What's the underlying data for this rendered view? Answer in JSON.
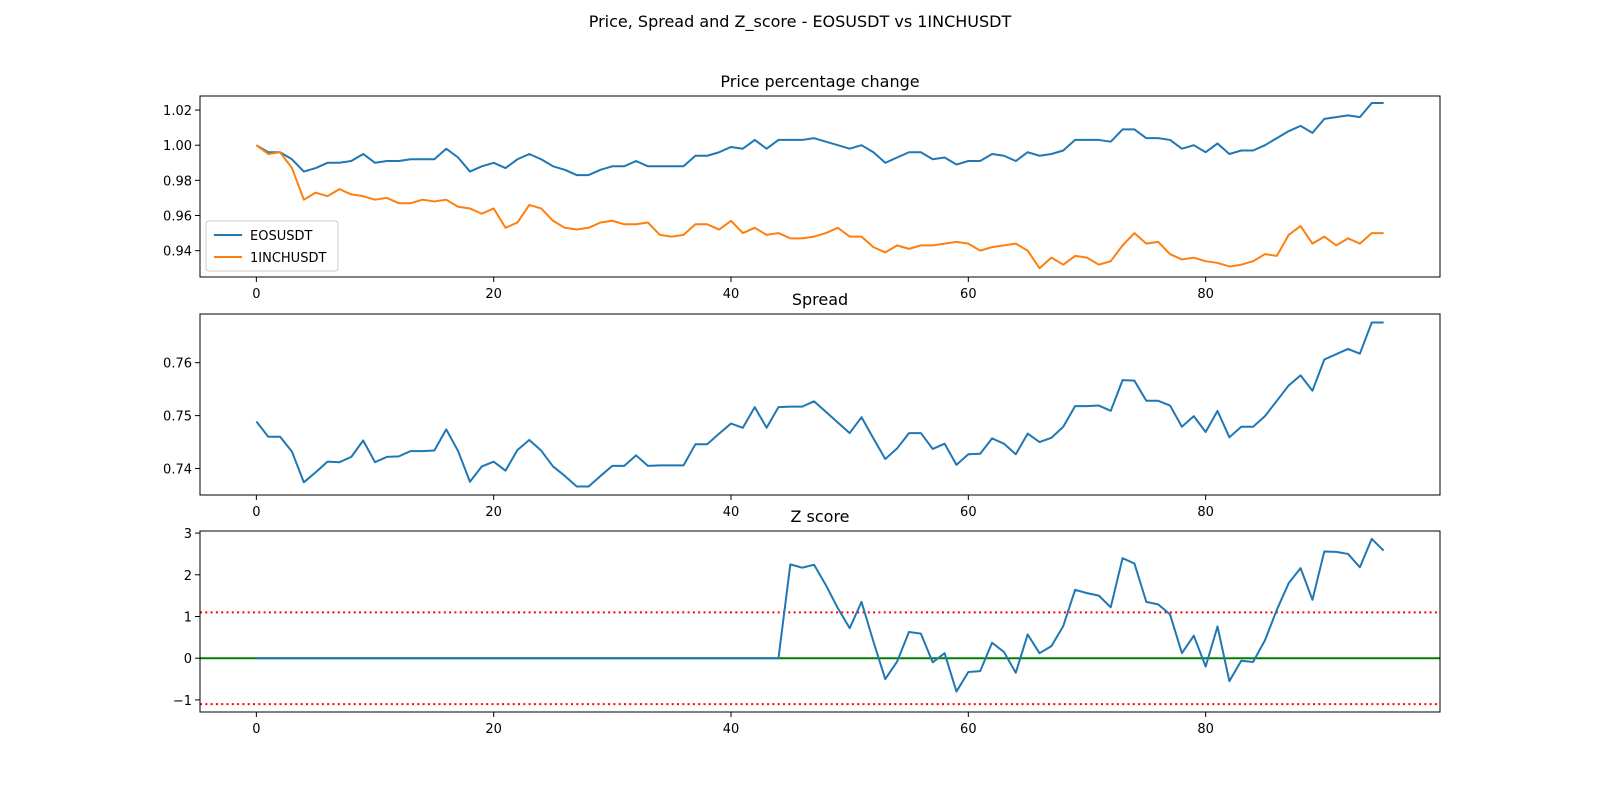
{
  "figure_title": "Price, Spread and Z_score - EOSUSDT vs 1INCHUSDT",
  "colors": {
    "blue": "#1f77b4",
    "orange": "#ff7f0e",
    "green": "#008000",
    "red": "#ff0000"
  },
  "chart_data": [
    {
      "type": "line",
      "title": "Price percentage change",
      "xlabel": "",
      "ylabel": "",
      "xlim": [
        -4.75,
        99.75
      ],
      "ylim": [
        0.925,
        1.028
      ],
      "xticks": [
        0,
        20,
        40,
        60,
        80
      ],
      "yticks": [
        0.94,
        0.96,
        0.98,
        1.0,
        1.02
      ],
      "ytick_labels": [
        "0.94",
        "0.96",
        "0.98",
        "1.00",
        "1.02"
      ],
      "grid": false,
      "legend": "lower-left",
      "series": [
        {
          "name": "EOSUSDT",
          "color": "#1f77b4",
          "values": [
            1.0,
            0.996,
            0.996,
            0.992,
            0.985,
            0.987,
            0.99,
            0.99,
            0.991,
            0.995,
            0.99,
            0.991,
            0.991,
            0.992,
            0.992,
            0.992,
            0.998,
            0.993,
            0.985,
            0.988,
            0.99,
            0.987,
            0.992,
            0.995,
            0.992,
            0.988,
            0.986,
            0.983,
            0.983,
            0.986,
            0.988,
            0.988,
            0.991,
            0.988,
            0.988,
            0.988,
            0.988,
            0.994,
            0.994,
            0.996,
            0.999,
            0.998,
            1.003,
            0.998,
            1.003,
            1.003,
            1.003,
            1.004,
            1.002,
            1.0,
            0.998,
            1.0,
            0.996,
            0.99,
            0.993,
            0.996,
            0.996,
            0.992,
            0.993,
            0.989,
            0.991,
            0.991,
            0.995,
            0.994,
            0.991,
            0.996,
            0.994,
            0.995,
            0.997,
            1.003,
            1.003,
            1.003,
            1.002,
            1.009,
            1.009,
            1.004,
            1.004,
            1.003,
            0.998,
            1.0,
            0.996,
            1.001,
            0.995,
            0.997,
            0.997,
            1.0,
            1.004,
            1.008,
            1.011,
            1.007,
            1.015,
            1.016,
            1.017,
            1.016,
            1.024,
            1.024
          ]
        },
        {
          "name": "1INCHUSDT",
          "color": "#ff7f0e",
          "values": [
            1.0,
            0.995,
            0.996,
            0.987,
            0.969,
            0.973,
            0.971,
            0.975,
            0.972,
            0.971,
            0.969,
            0.97,
            0.967,
            0.967,
            0.969,
            0.968,
            0.969,
            0.965,
            0.964,
            0.961,
            0.964,
            0.953,
            0.956,
            0.966,
            0.964,
            0.957,
            0.953,
            0.952,
            0.953,
            0.956,
            0.957,
            0.955,
            0.955,
            0.956,
            0.949,
            0.948,
            0.949,
            0.955,
            0.955,
            0.952,
            0.957,
            0.95,
            0.953,
            0.949,
            0.95,
            0.947,
            0.947,
            0.948,
            0.95,
            0.953,
            0.948,
            0.948,
            0.942,
            0.939,
            0.943,
            0.941,
            0.943,
            0.943,
            0.944,
            0.945,
            0.944,
            0.94,
            0.942,
            0.943,
            0.944,
            0.94,
            0.93,
            0.936,
            0.932,
            0.937,
            0.936,
            0.932,
            0.934,
            0.943,
            0.95,
            0.944,
            0.945,
            0.938,
            0.935,
            0.936,
            0.934,
            0.933,
            0.931,
            0.932,
            0.934,
            0.938,
            0.937,
            0.949,
            0.954,
            0.944,
            0.948,
            0.943,
            0.947,
            0.944,
            0.95,
            0.95
          ]
        }
      ]
    },
    {
      "type": "line",
      "title": "Spread",
      "xlabel": "",
      "ylabel": "",
      "xlim": [
        -4.75,
        99.75
      ],
      "ylim": [
        0.735,
        0.7692
      ],
      "xticks": [
        0,
        20,
        40,
        60,
        80
      ],
      "yticks": [
        0.74,
        0.75,
        0.76
      ],
      "ytick_labels": [
        "0.74",
        "0.75",
        "0.76"
      ],
      "grid": false,
      "series": [
        {
          "name": "",
          "color": "#1f77b4",
          "values": [
            0.7489,
            0.746,
            0.746,
            0.7432,
            0.7374,
            0.7393,
            0.7413,
            0.7412,
            0.7422,
            0.7453,
            0.7412,
            0.7422,
            0.7423,
            0.7433,
            0.7433,
            0.7434,
            0.7474,
            0.7433,
            0.7375,
            0.7404,
            0.7413,
            0.7396,
            0.7435,
            0.7454,
            0.7434,
            0.7404,
            0.7386,
            0.7366,
            0.7366,
            0.7386,
            0.7405,
            0.7405,
            0.7425,
            0.7405,
            0.7406,
            0.7406,
            0.7406,
            0.7446,
            0.7446,
            0.7466,
            0.7485,
            0.7477,
            0.7516,
            0.7477,
            0.7516,
            0.7517,
            0.7517,
            0.7527,
            0.7507,
            0.7487,
            0.7467,
            0.7497,
            0.7457,
            0.7418,
            0.7438,
            0.7467,
            0.7467,
            0.7437,
            0.7447,
            0.7407,
            0.7427,
            0.7428,
            0.7457,
            0.7447,
            0.7427,
            0.7466,
            0.745,
            0.7458,
            0.7479,
            0.7518,
            0.7518,
            0.7519,
            0.7509,
            0.7567,
            0.7566,
            0.7528,
            0.7528,
            0.7519,
            0.7479,
            0.7499,
            0.7469,
            0.7509,
            0.7459,
            0.7479,
            0.7479,
            0.7499,
            0.7528,
            0.7557,
            0.7576,
            0.7547,
            0.7606,
            0.7616,
            0.7626,
            0.7617,
            0.7676,
            0.7676
          ]
        }
      ]
    },
    {
      "type": "line",
      "title": "Z score",
      "xlabel": "",
      "ylabel": "",
      "xlim": [
        -4.75,
        99.75
      ],
      "ylim": [
        -1.29,
        3.05
      ],
      "xticks": [
        0,
        20,
        40,
        60,
        80
      ],
      "yticks": [
        -1,
        0,
        1,
        2,
        3
      ],
      "ytick_labels": [
        "−1",
        "0",
        "1",
        "2",
        "3"
      ],
      "grid": false,
      "reference_lines": [
        {
          "y": 0,
          "color": "#008000",
          "style": "solid"
        },
        {
          "y": 1.1,
          "color": "#ff0000",
          "style": "dotted"
        },
        {
          "y": -1.1,
          "color": "#ff0000",
          "style": "dotted"
        }
      ],
      "series": [
        {
          "name": "",
          "color": "#1f77b4",
          "values": [
            0,
            0,
            0,
            0,
            0,
            0,
            0,
            0,
            0,
            0,
            0,
            0,
            0,
            0,
            0,
            0,
            0,
            0,
            0,
            0,
            0,
            0,
            0,
            0,
            0,
            0,
            0,
            0,
            0,
            0,
            0,
            0,
            0,
            0,
            0,
            0,
            0,
            0,
            0,
            0,
            0,
            0,
            0,
            0,
            0,
            2.25,
            2.17,
            2.24,
            1.75,
            1.2,
            0.72,
            1.35,
            0.4,
            -0.5,
            -0.08,
            0.63,
            0.59,
            -0.1,
            0.12,
            -0.8,
            -0.33,
            -0.31,
            0.37,
            0.15,
            -0.35,
            0.57,
            0.12,
            0.29,
            0.77,
            1.64,
            1.56,
            1.5,
            1.22,
            2.4,
            2.27,
            1.35,
            1.29,
            1.05,
            0.12,
            0.54,
            -0.2,
            0.76,
            -0.55,
            -0.06,
            -0.09,
            0.43,
            1.16,
            1.8,
            2.16,
            1.4,
            2.56,
            2.55,
            2.5,
            2.18,
            2.86,
            2.58
          ]
        }
      ]
    }
  ]
}
